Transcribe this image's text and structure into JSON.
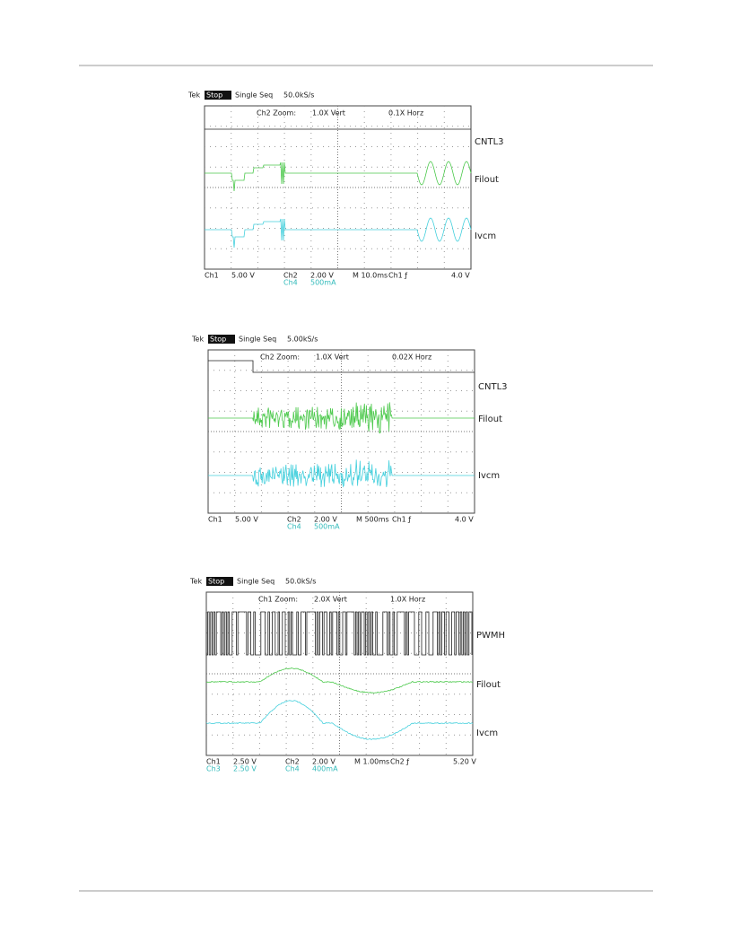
{
  "scopes": [
    {
      "tek": "Tek",
      "state": "Stop",
      "mode": "Single Seq",
      "rate": "50.0kS/s",
      "zoom": "Ch2 Zoom:",
      "vert": "1.0X Vert",
      "horz": "0.1X Horz",
      "footer": [
        [
          "Ch1",
          "5.00 V",
          "Ch2",
          "2.00 V",
          "M 10.0ms",
          "Ch1 ƒ",
          "4.0 V"
        ],
        [
          "Ch4",
          "500mA"
        ]
      ],
      "traces": [
        "CNTL3",
        "Filout",
        "Ivcm"
      ]
    },
    {
      "tek": "Tek",
      "state": "Stop",
      "mode": "Single Seq",
      "rate": "5.00kS/s",
      "zoom": "Ch2 Zoom:",
      "vert": "1.0X Vert",
      "horz": "0.02X Horz",
      "footer": [
        [
          "Ch1",
          "5.00 V",
          "Ch2",
          "2.00 V",
          "M 500ms",
          "Ch1 ƒ",
          "4.0 V"
        ],
        [
          "Ch4",
          "500mA"
        ]
      ],
      "traces": [
        "CNTL3",
        "Filout",
        "Ivcm"
      ]
    },
    {
      "tek": "Tek",
      "state": "Stop",
      "mode": "Single Seq",
      "rate": "50.0kS/s",
      "zoom": "Ch1 Zoom:",
      "vert": "2.0X Vert",
      "horz": "1.0X Horz",
      "footer": [
        [
          "Ch1",
          "2.50 V",
          "Ch2",
          "2.00 V",
          "M 1.00ms",
          "Ch2 ƒ",
          "5.20 V"
        ],
        [
          "Ch3",
          "2.50 V",
          "Ch4",
          "400mA"
        ]
      ],
      "traces": [
        "PWMH",
        "Filout",
        "Ivcm"
      ]
    }
  ]
}
